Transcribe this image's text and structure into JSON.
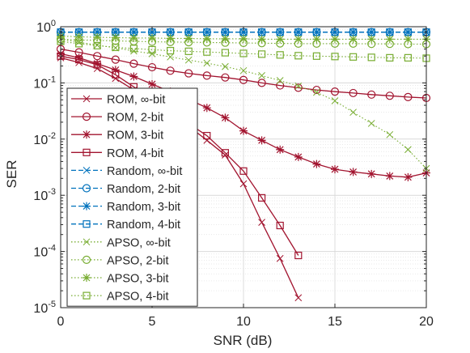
{
  "chart_data": {
    "type": "line",
    "xlabel": "SNR (dB)",
    "ylabel": "SER",
    "xlim": [
      0,
      20
    ],
    "ylim": [
      1e-05,
      1
    ],
    "yscale": "log",
    "grid": true,
    "legend_position": "left",
    "x_ticks": [
      0,
      5,
      10,
      15,
      20
    ],
    "x_tick_labels": [
      "0",
      "5",
      "10",
      "15",
      "20"
    ],
    "y_ticks": [
      1e-05,
      0.0001,
      0.001,
      0.01,
      0.1,
      1
    ],
    "y_tick_labels": [
      {
        "base": "10",
        "exp": "-5"
      },
      {
        "base": "10",
        "exp": "-4"
      },
      {
        "base": "10",
        "exp": "-3"
      },
      {
        "base": "10",
        "exp": "-2"
      },
      {
        "base": "10",
        "exp": "-1"
      },
      {
        "base": "10",
        "exp": "0"
      }
    ],
    "colors": {
      "rom": "#a2142f",
      "random": "#0072bd",
      "apso": "#77ac30"
    },
    "series": [
      {
        "name": "ROM, ∞-bit",
        "group": "rom",
        "marker": "x",
        "dash": "solid",
        "x": [
          0,
          1,
          2,
          3,
          4,
          5,
          6,
          7,
          8,
          9,
          10,
          11,
          12,
          13
        ],
        "y": [
          0.28,
          0.23,
          0.18,
          0.12,
          0.075,
          0.045,
          0.027,
          0.017,
          0.0095,
          0.0052,
          0.0016,
          0.00033,
          7.5e-05,
          1.5e-05
        ]
      },
      {
        "name": "ROM, 2-bit",
        "group": "rom",
        "marker": "o",
        "dash": "solid",
        "x": [
          0,
          1,
          2,
          3,
          4,
          5,
          6,
          7,
          8,
          9,
          10,
          11,
          12,
          13,
          14,
          15,
          16,
          17,
          18,
          19,
          20
        ],
        "y": [
          0.4,
          0.35,
          0.3,
          0.26,
          0.22,
          0.19,
          0.165,
          0.148,
          0.135,
          0.125,
          0.113,
          0.1,
          0.09,
          0.082,
          0.075,
          0.07,
          0.066,
          0.062,
          0.059,
          0.056,
          0.054
        ]
      },
      {
        "name": "ROM, 3-bit",
        "group": "rom",
        "marker": "*",
        "dash": "solid",
        "x": [
          0,
          1,
          2,
          3,
          4,
          5,
          6,
          7,
          8,
          9,
          10,
          11,
          12,
          13,
          14,
          15,
          16,
          17,
          18,
          19,
          20
        ],
        "y": [
          0.33,
          0.28,
          0.22,
          0.17,
          0.13,
          0.095,
          0.07,
          0.051,
          0.036,
          0.024,
          0.014,
          0.0095,
          0.0065,
          0.0048,
          0.0036,
          0.0029,
          0.0026,
          0.0024,
          0.0022,
          0.0021,
          0.0025
        ]
      },
      {
        "name": "ROM, 4-bit",
        "group": "rom",
        "marker": "s",
        "dash": "solid",
        "x": [
          0,
          1,
          2,
          3,
          4,
          5,
          6,
          7,
          8,
          9,
          10,
          11,
          12,
          13
        ],
        "y": [
          0.3,
          0.26,
          0.21,
          0.14,
          0.085,
          0.05,
          0.03,
          0.019,
          0.0115,
          0.0057,
          0.0027,
          0.0009,
          0.00029,
          8.5e-05
        ]
      },
      {
        "name": "Random, ∞-bit",
        "group": "random",
        "marker": "x",
        "dash": "dashed",
        "x": [
          0,
          1,
          2,
          3,
          4,
          5,
          6,
          7,
          8,
          9,
          10,
          11,
          12,
          13,
          14,
          15,
          16,
          17,
          18,
          19,
          20
        ],
        "y": [
          0.8,
          0.8,
          0.8,
          0.8,
          0.8,
          0.8,
          0.8,
          0.8,
          0.8,
          0.8,
          0.8,
          0.8,
          0.8,
          0.8,
          0.8,
          0.8,
          0.8,
          0.8,
          0.8,
          0.8,
          0.8
        ]
      },
      {
        "name": "Random, 2-bit",
        "group": "random",
        "marker": "o",
        "dash": "dashed",
        "x": [
          0,
          1,
          2,
          3,
          4,
          5,
          6,
          7,
          8,
          9,
          10,
          11,
          12,
          13,
          14,
          15,
          16,
          17,
          18,
          19,
          20
        ],
        "y": [
          0.8,
          0.8,
          0.8,
          0.8,
          0.8,
          0.8,
          0.8,
          0.8,
          0.8,
          0.8,
          0.8,
          0.8,
          0.8,
          0.8,
          0.8,
          0.8,
          0.8,
          0.8,
          0.8,
          0.8,
          0.8
        ]
      },
      {
        "name": "Random, 3-bit",
        "group": "random",
        "marker": "*",
        "dash": "dashed",
        "x": [
          0,
          1,
          2,
          3,
          4,
          5,
          6,
          7,
          8,
          9,
          10,
          11,
          12,
          13,
          14,
          15,
          16,
          17,
          18,
          19,
          20
        ],
        "y": [
          0.8,
          0.8,
          0.8,
          0.8,
          0.8,
          0.8,
          0.8,
          0.8,
          0.8,
          0.8,
          0.8,
          0.8,
          0.8,
          0.8,
          0.8,
          0.8,
          0.8,
          0.8,
          0.8,
          0.8,
          0.8
        ]
      },
      {
        "name": "Random, 4-bit",
        "group": "random",
        "marker": "s",
        "dash": "dashed",
        "x": [
          0,
          1,
          2,
          3,
          4,
          5,
          6,
          7,
          8,
          9,
          10,
          11,
          12,
          13,
          14,
          15,
          16,
          17,
          18,
          19,
          20
        ],
        "y": [
          0.8,
          0.8,
          0.8,
          0.8,
          0.8,
          0.8,
          0.8,
          0.8,
          0.8,
          0.8,
          0.8,
          0.8,
          0.8,
          0.8,
          0.8,
          0.8,
          0.8,
          0.8,
          0.8,
          0.8,
          0.8
        ]
      },
      {
        "name": "APSO, ∞-bit",
        "group": "apso",
        "marker": "x",
        "dash": "dotted",
        "x": [
          0,
          1,
          2,
          3,
          4,
          5,
          6,
          7,
          8,
          9,
          10,
          11,
          12,
          13,
          14,
          15,
          16,
          17,
          18,
          19,
          20
        ],
        "y": [
          0.6,
          0.53,
          0.47,
          0.42,
          0.37,
          0.33,
          0.29,
          0.255,
          0.225,
          0.195,
          0.165,
          0.135,
          0.11,
          0.088,
          0.068,
          0.048,
          0.03,
          0.019,
          0.012,
          0.0065,
          0.003
        ]
      },
      {
        "name": "APSO, 2-bit",
        "group": "apso",
        "marker": "o",
        "dash": "dotted",
        "x": [
          0,
          1,
          2,
          3,
          4,
          5,
          6,
          7,
          8,
          9,
          10,
          11,
          12,
          13,
          14,
          15,
          16,
          17,
          18,
          19,
          20
        ],
        "y": [
          0.6,
          0.58,
          0.57,
          0.56,
          0.55,
          0.54,
          0.535,
          0.53,
          0.525,
          0.52,
          0.515,
          0.51,
          0.505,
          0.5,
          0.5,
          0.5,
          0.5,
          0.495,
          0.495,
          0.49,
          0.49
        ]
      },
      {
        "name": "APSO, 3-bit",
        "group": "apso",
        "marker": "*",
        "dash": "dotted",
        "x": [
          0,
          1,
          2,
          3,
          4,
          5,
          6,
          7,
          8,
          9,
          10,
          11,
          12,
          13,
          14,
          15,
          16,
          17,
          18,
          19,
          20
        ],
        "y": [
          0.68,
          0.66,
          0.65,
          0.64,
          0.63,
          0.63,
          0.62,
          0.62,
          0.61,
          0.61,
          0.61,
          0.6,
          0.6,
          0.6,
          0.6,
          0.6,
          0.6,
          0.6,
          0.6,
          0.6,
          0.6
        ]
      },
      {
        "name": "APSO, 4-bit",
        "group": "apso",
        "marker": "s",
        "dash": "dotted",
        "x": [
          0,
          1,
          2,
          3,
          4,
          5,
          6,
          7,
          8,
          9,
          10,
          11,
          12,
          13,
          14,
          15,
          16,
          17,
          18,
          19,
          20
        ],
        "y": [
          0.55,
          0.5,
          0.46,
          0.43,
          0.41,
          0.39,
          0.375,
          0.365,
          0.355,
          0.345,
          0.335,
          0.325,
          0.315,
          0.305,
          0.3,
          0.295,
          0.29,
          0.285,
          0.28,
          0.28,
          0.275
        ]
      }
    ]
  }
}
